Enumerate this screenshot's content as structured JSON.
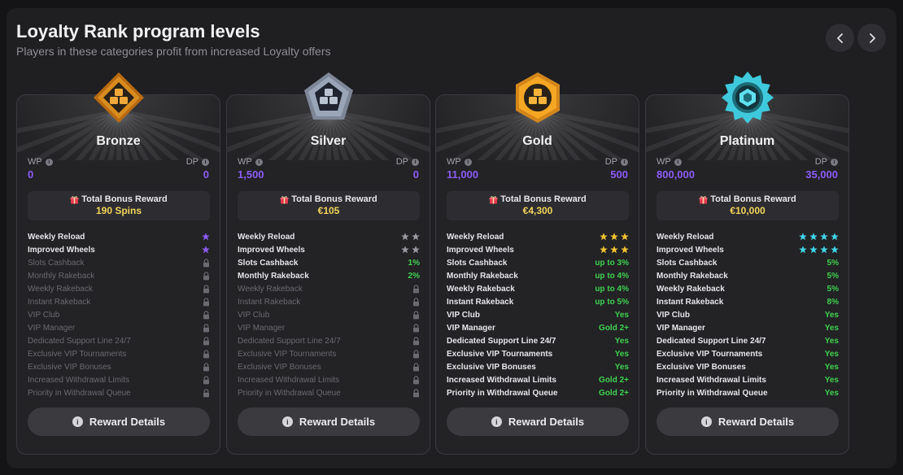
{
  "header": {
    "title": "Loyalty Rank program levels",
    "subtitle": "Players in these categories profit from increased Loyalty offers"
  },
  "labels": {
    "wp": "WP",
    "dp": "DP",
    "total_bonus": "Total Bonus Reward",
    "details_button": "Reward Details"
  },
  "cards": [
    {
      "name": "Bronze",
      "accent": "#d98c1e",
      "wp": "0",
      "dp": "0",
      "bonus": "190 Spins",
      "star_color": "#8b5cf6",
      "features": [
        {
          "label": "Weekly Reload",
          "stars": 1
        },
        {
          "label": "Improved Wheels",
          "stars": 1
        },
        {
          "label": "Slots Cashback",
          "locked": true
        },
        {
          "label": "Monthly Rakeback",
          "locked": true
        },
        {
          "label": "Weekly Rakeback",
          "locked": true
        },
        {
          "label": "Instant Rakeback",
          "locked": true
        },
        {
          "label": "VIP Club",
          "locked": true
        },
        {
          "label": "VIP Manager",
          "locked": true
        },
        {
          "label": "Dedicated Support Line 24/7",
          "locked": true
        },
        {
          "label": "Exclusive VIP Tournaments",
          "locked": true
        },
        {
          "label": "Exclusive VIP Bonuses",
          "locked": true
        },
        {
          "label": "Increased Withdrawal Limits",
          "locked": true
        },
        {
          "label": "Priority in Withdrawal Queue",
          "locked": true
        }
      ]
    },
    {
      "name": "Silver",
      "accent": "#9aa6b8",
      "wp": "1,500",
      "dp": "0",
      "bonus": "€105",
      "star_color": "#9a9aa2",
      "features": [
        {
          "label": "Weekly Reload",
          "stars": 2
        },
        {
          "label": "Improved Wheels",
          "stars": 2
        },
        {
          "label": "Slots Cashback",
          "value": "1%"
        },
        {
          "label": "Monthly Rakeback",
          "value": "2%"
        },
        {
          "label": "Weekly Rakeback",
          "locked": true
        },
        {
          "label": "Instant Rakeback",
          "locked": true
        },
        {
          "label": "VIP Club",
          "locked": true
        },
        {
          "label": "VIP Manager",
          "locked": true
        },
        {
          "label": "Dedicated Support Line 24/7",
          "locked": true
        },
        {
          "label": "Exclusive VIP Tournaments",
          "locked": true
        },
        {
          "label": "Exclusive VIP Bonuses",
          "locked": true
        },
        {
          "label": "Increased Withdrawal Limits",
          "locked": true
        },
        {
          "label": "Priority in Withdrawal Queue",
          "locked": true
        }
      ]
    },
    {
      "name": "Gold",
      "accent": "#f5a623",
      "wp": "11,000",
      "dp": "500",
      "bonus": "€4,300",
      "star_color": "#f2c230",
      "features": [
        {
          "label": "Weekly Reload",
          "stars": 3
        },
        {
          "label": "Improved Wheels",
          "stars": 3
        },
        {
          "label": "Slots Cashback",
          "value": "up to 3%"
        },
        {
          "label": "Monthly Rakeback",
          "value": "up to 4%"
        },
        {
          "label": "Weekly Rakeback",
          "value": "up to 4%"
        },
        {
          "label": "Instant Rakeback",
          "value": "up to 5%"
        },
        {
          "label": "VIP Club",
          "value": "Yes"
        },
        {
          "label": "VIP Manager",
          "value": "Gold 2+"
        },
        {
          "label": "Dedicated Support Line 24/7",
          "value": "Yes"
        },
        {
          "label": "Exclusive VIP Tournaments",
          "value": "Yes"
        },
        {
          "label": "Exclusive VIP Bonuses",
          "value": "Yes"
        },
        {
          "label": "Increased Withdrawal Limits",
          "value": "Gold 2+"
        },
        {
          "label": "Priority in Withdrawal Queue",
          "value": "Gold 2+"
        }
      ]
    },
    {
      "name": "Platinum",
      "accent": "#3fc9dc",
      "wp": "800,000",
      "dp": "35,000",
      "bonus": "€10,000",
      "star_color": "#3fd6e8",
      "features": [
        {
          "label": "Weekly Reload",
          "stars": 4
        },
        {
          "label": "Improved Wheels",
          "stars": 4
        },
        {
          "label": "Slots Cashback",
          "value": "5%"
        },
        {
          "label": "Monthly Rakeback",
          "value": "5%"
        },
        {
          "label": "Weekly Rakeback",
          "value": "5%"
        },
        {
          "label": "Instant Rakeback",
          "value": "8%"
        },
        {
          "label": "VIP Club",
          "value": "Yes"
        },
        {
          "label": "VIP Manager",
          "value": "Yes"
        },
        {
          "label": "Dedicated Support Line 24/7",
          "value": "Yes"
        },
        {
          "label": "Exclusive VIP Tournaments",
          "value": "Yes"
        },
        {
          "label": "Exclusive VIP Bonuses",
          "value": "Yes"
        },
        {
          "label": "Increased Withdrawal Limits",
          "value": "Yes"
        },
        {
          "label": "Priority in Withdrawal Queue",
          "value": "Yes"
        }
      ]
    }
  ]
}
